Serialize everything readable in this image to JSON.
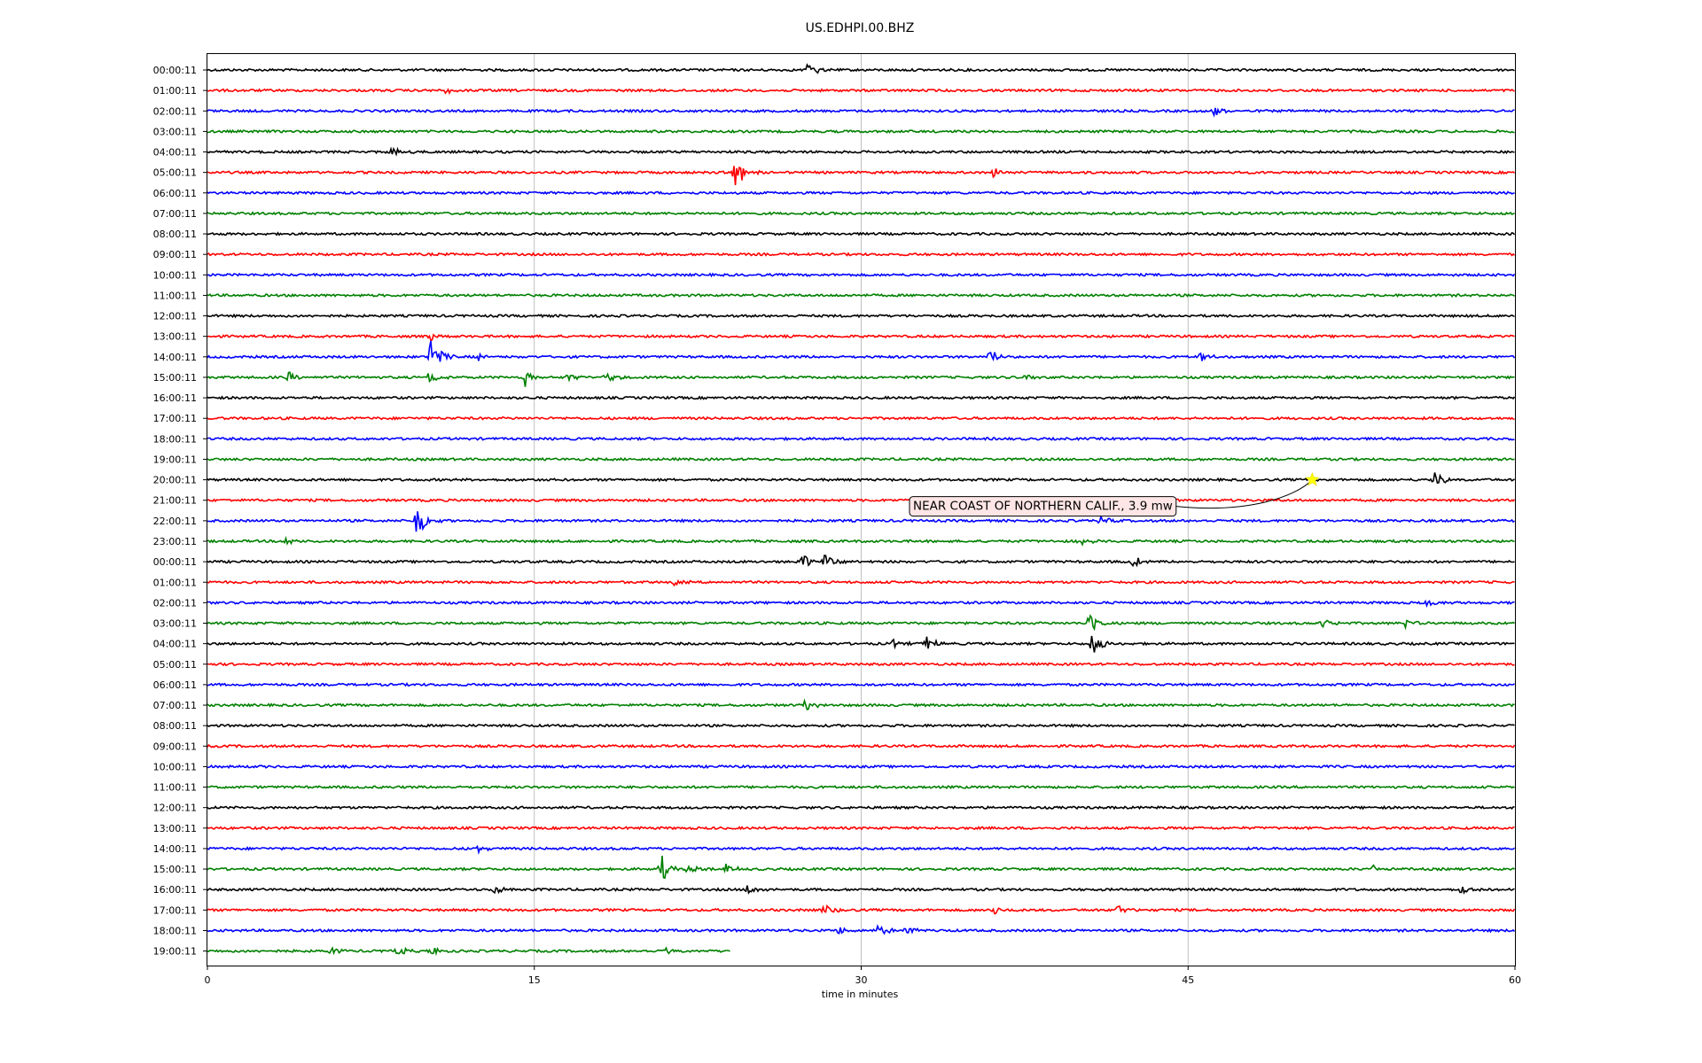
{
  "chart_data": {
    "type": "line",
    "title": "US.EDHPI.00.BHZ",
    "xlabel": "time in minutes",
    "ylabel": "",
    "xlim": [
      0,
      60
    ],
    "xticks": [
      0,
      15,
      30,
      45,
      60
    ],
    "grid": "vertical at x ticks",
    "row_labels": [
      "00:00:11",
      "01:00:11",
      "02:00:11",
      "03:00:11",
      "04:00:11",
      "05:00:11",
      "06:00:11",
      "07:00:11",
      "08:00:11",
      "09:00:11",
      "10:00:11",
      "11:00:11",
      "12:00:11",
      "13:00:11",
      "14:00:11",
      "15:00:11",
      "16:00:11",
      "17:00:11",
      "18:00:11",
      "19:00:11",
      "20:00:11",
      "21:00:11",
      "22:00:11",
      "23:00:11",
      "00:00:11",
      "01:00:11",
      "02:00:11",
      "03:00:11",
      "04:00:11",
      "05:00:11",
      "06:00:11",
      "07:00:11",
      "08:00:11",
      "09:00:11",
      "10:00:11",
      "11:00:11",
      "12:00:11",
      "13:00:11",
      "14:00:11",
      "15:00:11",
      "16:00:11",
      "17:00:11",
      "18:00:11",
      "19:00:11"
    ],
    "trace_colors": [
      "#000000",
      "#ff0000",
      "#0000ff",
      "#008000"
    ],
    "last_row_end_minute": 24,
    "events": [
      {
        "row": 0,
        "minute": 27.6,
        "amplitude": 1.0
      },
      {
        "row": 1,
        "minute": 11.0,
        "amplitude": 0.6
      },
      {
        "row": 2,
        "minute": 46.2,
        "amplitude": 0.7
      },
      {
        "row": 4,
        "minute": 8.5,
        "amplitude": 0.6
      },
      {
        "row": 5,
        "minute": 24.2,
        "amplitude": 2.6
      },
      {
        "row": 5,
        "minute": 36.0,
        "amplitude": 0.6
      },
      {
        "row": 13,
        "minute": 10.2,
        "amplitude": 0.4
      },
      {
        "row": 14,
        "minute": 10.2,
        "amplitude": 2.6
      },
      {
        "row": 14,
        "minute": 12.5,
        "amplitude": 0.7
      },
      {
        "row": 14,
        "minute": 35.9,
        "amplitude": 0.8
      },
      {
        "row": 14,
        "minute": 45.5,
        "amplitude": 0.6
      },
      {
        "row": 15,
        "minute": 10.2,
        "amplitude": 0.8
      },
      {
        "row": 15,
        "minute": 14.6,
        "amplitude": 1.2
      },
      {
        "row": 15,
        "minute": 16.5,
        "amplitude": 0.6
      },
      {
        "row": 15,
        "minute": 18.3,
        "amplitude": 0.6
      },
      {
        "row": 15,
        "minute": 3.7,
        "amplitude": 0.6
      },
      {
        "row": 15,
        "minute": 37.5,
        "amplitude": 0.5
      },
      {
        "row": 20,
        "minute": 56.3,
        "amplitude": 0.9
      },
      {
        "row": 22,
        "minute": 9.6,
        "amplitude": 1.8
      },
      {
        "row": 22,
        "minute": 41.0,
        "amplitude": 0.5
      },
      {
        "row": 23,
        "minute": 3.6,
        "amplitude": 0.5
      },
      {
        "row": 23,
        "minute": 40.0,
        "amplitude": 0.6
      },
      {
        "row": 24,
        "minute": 27.3,
        "amplitude": 1.0
      },
      {
        "row": 24,
        "minute": 28.3,
        "amplitude": 0.9
      },
      {
        "row": 24,
        "minute": 42.5,
        "amplitude": 0.6
      },
      {
        "row": 25,
        "minute": 21.3,
        "amplitude": 0.5
      },
      {
        "row": 26,
        "minute": 56.0,
        "amplitude": 0.4
      },
      {
        "row": 27,
        "minute": 51.2,
        "amplitude": 0.6
      },
      {
        "row": 27,
        "minute": 55.0,
        "amplitude": 0.5
      },
      {
        "row": 27,
        "minute": 40.5,
        "amplitude": 1.4
      },
      {
        "row": 28,
        "minute": 40.6,
        "amplitude": 1.8
      },
      {
        "row": 28,
        "minute": 33.0,
        "amplitude": 0.9
      },
      {
        "row": 28,
        "minute": 31.5,
        "amplitude": 0.5
      },
      {
        "row": 31,
        "minute": 27.4,
        "amplitude": 0.6
      },
      {
        "row": 38,
        "minute": 12.3,
        "amplitude": 0.5
      },
      {
        "row": 39,
        "minute": 20.8,
        "amplitude": 1.6
      },
      {
        "row": 39,
        "minute": 22.0,
        "amplitude": 0.7
      },
      {
        "row": 39,
        "minute": 23.8,
        "amplitude": 0.5
      },
      {
        "row": 39,
        "minute": 53.5,
        "amplitude": 0.4
      },
      {
        "row": 40,
        "minute": 13.2,
        "amplitude": 0.8
      },
      {
        "row": 40,
        "minute": 24.8,
        "amplitude": 0.6
      },
      {
        "row": 40,
        "minute": 57.5,
        "amplitude": 0.6
      },
      {
        "row": 41,
        "minute": 28.3,
        "amplitude": 0.7
      },
      {
        "row": 41,
        "minute": 36.0,
        "amplitude": 0.6
      },
      {
        "row": 41,
        "minute": 41.8,
        "amplitude": 0.7
      },
      {
        "row": 42,
        "minute": 29.0,
        "amplitude": 0.5
      },
      {
        "row": 42,
        "minute": 30.8,
        "amplitude": 0.6
      },
      {
        "row": 42,
        "minute": 32.0,
        "amplitude": 0.6
      },
      {
        "row": 43,
        "minute": 5.6,
        "amplitude": 0.4
      },
      {
        "row": 43,
        "minute": 8.7,
        "amplitude": 0.6
      },
      {
        "row": 43,
        "minute": 10.2,
        "amplitude": 0.5
      },
      {
        "row": 43,
        "minute": 21.0,
        "amplitude": 0.5
      }
    ],
    "annotation": {
      "text": "NEAR COAST OF NORTHERN CALIF., 3.9 mw",
      "row": 20,
      "minute": 50.7,
      "marker_color": "#ffff00"
    }
  }
}
